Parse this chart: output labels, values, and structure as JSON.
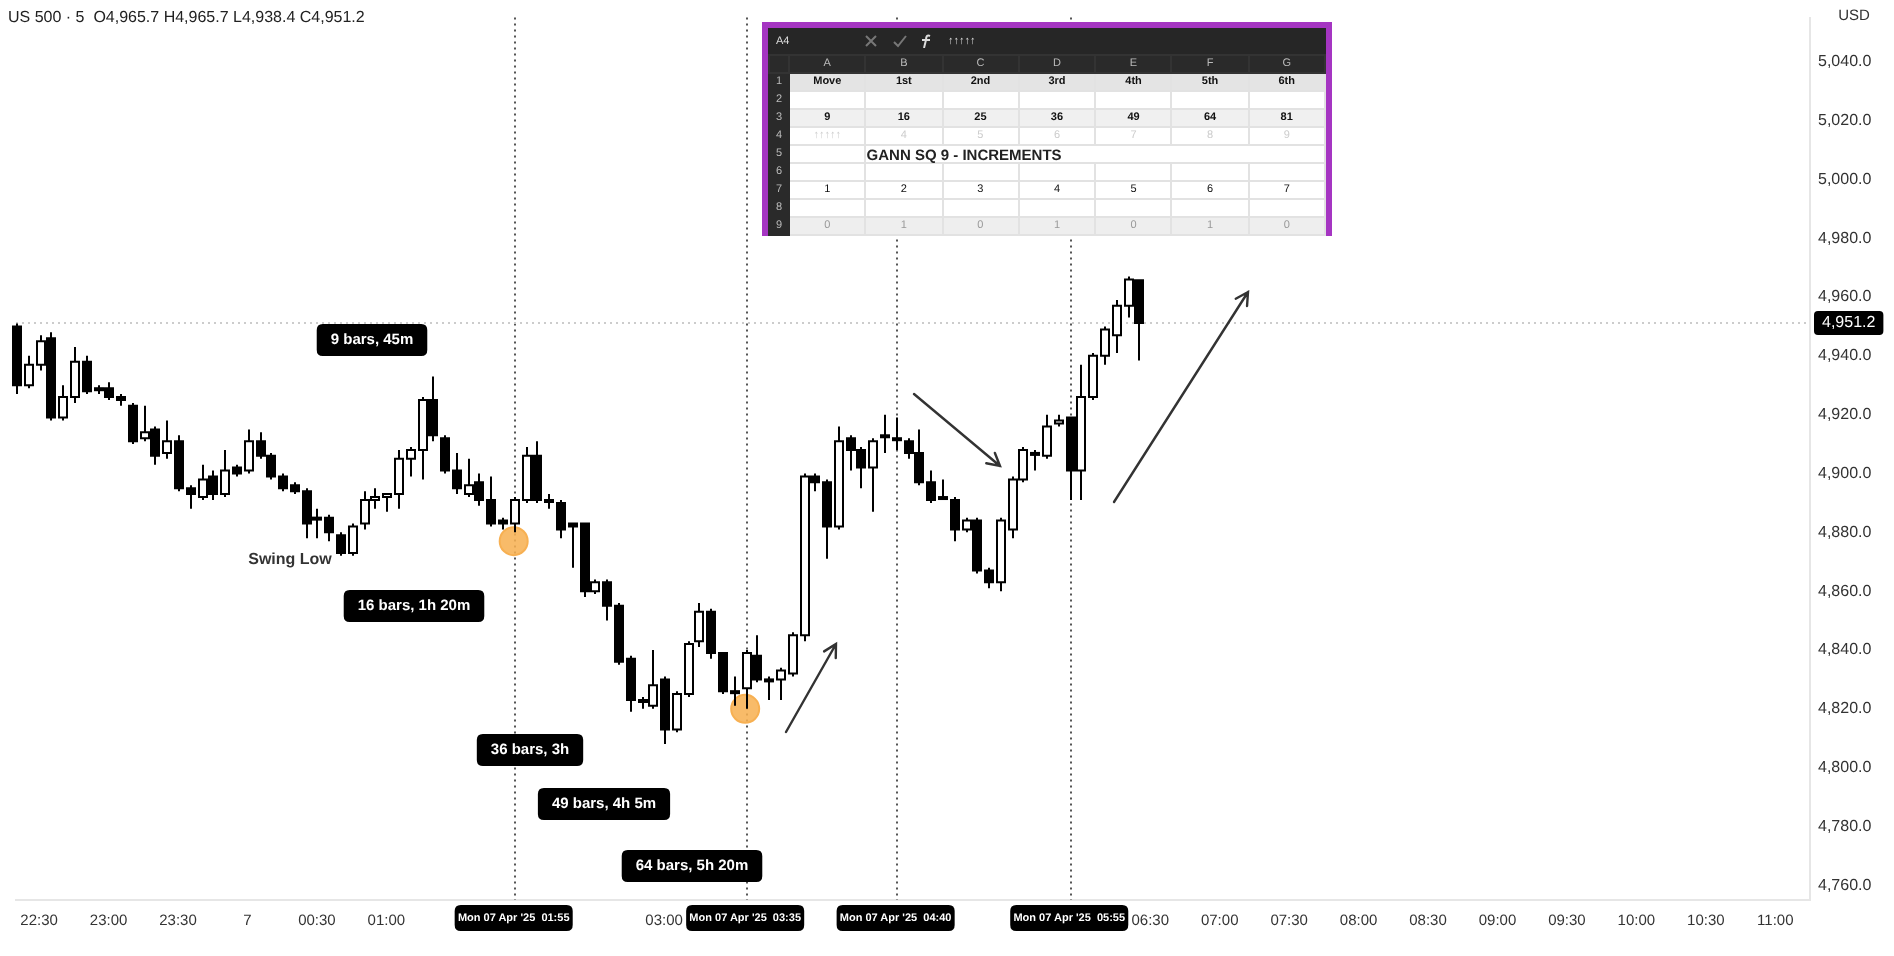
{
  "chart_data": {
    "type": "candlestick",
    "title": "US 500 · 5  O4,965.7 H4,965.7 L4,938.4 C4,951.2",
    "x": [
      "2025-04-06T22:20",
      "2025-04-06T22:25",
      "2025-04-06T22:30",
      "2025-04-06T22:35",
      "2025-04-06T22:40",
      "2025-04-06T22:45",
      "2025-04-06T22:50",
      "2025-04-06T22:55",
      "2025-04-06T23:00",
      "2025-04-06T23:05",
      "2025-04-06T23:10",
      "2025-04-06T23:15",
      "2025-04-06T23:20",
      "2025-04-06T23:25",
      "2025-04-06T23:30",
      "2025-04-06T23:35",
      "2025-04-06T23:40",
      "2025-04-06T23:45",
      "2025-04-06T23:50",
      "2025-04-06T23:55",
      "2025-04-07T00:00",
      "2025-04-07T00:05",
      "2025-04-07T00:10",
      "2025-04-07T00:15",
      "2025-04-07T00:20",
      "2025-04-07T00:25",
      "2025-04-07T00:30",
      "2025-04-07T00:35",
      "2025-04-07T00:40",
      "2025-04-07T00:45",
      "2025-04-07T00:50",
      "2025-04-07T00:55",
      "2025-04-07T01:00",
      "2025-04-07T01:05",
      "2025-04-07T01:10",
      "2025-04-07T01:15",
      "2025-04-07T01:20",
      "2025-04-07T01:25",
      "2025-04-07T01:30",
      "2025-04-07T01:35",
      "2025-04-07T01:40",
      "2025-04-07T01:45",
      "2025-04-07T01:50",
      "2025-04-07T01:55",
      "2025-04-07T02:00",
      "2025-04-07T02:05",
      "2025-04-07T02:10",
      "2025-04-07T02:15",
      "2025-04-07T02:20",
      "2025-04-07T02:25",
      "2025-04-07T02:30",
      "2025-04-07T02:35",
      "2025-04-07T02:40",
      "2025-04-07T02:45",
      "2025-04-07T02:50",
      "2025-04-07T02:55",
      "2025-04-07T03:00",
      "2025-04-07T03:05",
      "2025-04-07T03:10",
      "2025-04-07T03:15",
      "2025-04-07T03:20",
      "2025-04-07T03:25",
      "2025-04-07T03:30",
      "2025-04-07T03:35",
      "2025-04-07T03:40",
      "2025-04-07T03:45",
      "2025-04-07T03:50",
      "2025-04-07T03:55",
      "2025-04-07T04:00",
      "2025-04-07T04:05",
      "2025-04-07T04:10",
      "2025-04-07T04:15",
      "2025-04-07T04:20",
      "2025-04-07T04:25",
      "2025-04-07T04:30",
      "2025-04-07T04:35",
      "2025-04-07T04:40",
      "2025-04-07T04:45",
      "2025-04-07T04:50",
      "2025-04-07T04:55",
      "2025-04-07T05:00",
      "2025-04-07T05:05",
      "2025-04-07T05:10",
      "2025-04-07T05:15",
      "2025-04-07T05:20",
      "2025-04-07T05:25",
      "2025-04-07T05:30",
      "2025-04-07T05:35",
      "2025-04-07T05:40",
      "2025-04-07T05:45",
      "2025-04-07T05:50",
      "2025-04-07T05:55",
      "2025-04-07T06:00",
      "2025-04-07T06:05",
      "2025-04-07T06:10",
      "2025-04-07T06:15",
      "2025-04-07T06:20",
      "2025-04-07T06:25"
    ],
    "ohlc": [
      [
        4950,
        4951,
        4927,
        4930
      ],
      [
        4930,
        4940,
        4929,
        4937
      ],
      [
        4937,
        4947,
        4935,
        4945
      ],
      [
        4946,
        4948,
        4918,
        4919
      ],
      [
        4919,
        4930,
        4918,
        4926
      ],
      [
        4926,
        4943,
        4924,
        4938
      ],
      [
        4938,
        4940,
        4927,
        4928
      ],
      [
        4929,
        4930,
        4927,
        4929
      ],
      [
        4929,
        4931,
        4925,
        4926
      ],
      [
        4926,
        4927,
        4923,
        4925
      ],
      [
        4923,
        4924,
        4910,
        4911
      ],
      [
        4912,
        4923,
        4911,
        4914
      ],
      [
        4915,
        4916,
        4903,
        4906
      ],
      [
        4907,
        4918,
        4905,
        4911
      ],
      [
        4911,
        4913,
        4894,
        4895
      ],
      [
        4895,
        4896,
        4888,
        4893
      ],
      [
        4892,
        4903,
        4891,
        4898
      ],
      [
        4899,
        4901,
        4891,
        4893
      ],
      [
        4893,
        4908,
        4892,
        4901
      ],
      [
        4902,
        4903,
        4899,
        4900
      ],
      [
        4901,
        4915,
        4900,
        4911
      ],
      [
        4911,
        4914,
        4905,
        4906
      ],
      [
        4906,
        4907,
        4898,
        4899
      ],
      [
        4899,
        4900,
        4894,
        4895
      ],
      [
        4896,
        4897,
        4893,
        4894
      ],
      [
        4894,
        4895,
        4878,
        4883
      ],
      [
        4885,
        4888,
        4878,
        4885
      ],
      [
        4885,
        4886,
        4877,
        4880
      ],
      [
        4879,
        4880,
        4872,
        4873
      ],
      [
        4873,
        4883,
        4872,
        4882
      ],
      [
        4883,
        4894,
        4881,
        4891
      ],
      [
        4891,
        4895,
        4888,
        4892
      ],
      [
        4892,
        4893,
        4887,
        4893
      ],
      [
        4893,
        4908,
        4888,
        4905
      ],
      [
        4905,
        4909,
        4899,
        4908
      ],
      [
        4908,
        4926,
        4898,
        4925
      ],
      [
        4925,
        4933,
        4911,
        4913
      ],
      [
        4912,
        4913,
        4900,
        4901
      ],
      [
        4901,
        4907,
        4893,
        4895
      ],
      [
        4893,
        4905,
        4892,
        4896
      ],
      [
        4897,
        4900,
        4889,
        4891
      ],
      [
        4891,
        4899,
        4882,
        4883
      ],
      [
        4884,
        4885,
        4881,
        4883
      ],
      [
        4883,
        4892,
        4880,
        4891
      ],
      [
        4891,
        4909,
        4890,
        4906
      ],
      [
        4906,
        4911,
        4890,
        4891
      ],
      [
        4891,
        4893,
        4888,
        4891
      ],
      [
        4890,
        4891,
        4878,
        4881
      ],
      [
        4883,
        4883,
        4868,
        4882
      ],
      [
        4883,
        4883,
        4858,
        4860
      ],
      [
        4860,
        4864,
        4859,
        4863
      ],
      [
        4863,
        4864,
        4850,
        4855
      ],
      [
        4855,
        4856,
        4835,
        4836
      ],
      [
        4837,
        4838,
        4819,
        4823
      ],
      [
        4823,
        4824,
        4820,
        4823
      ],
      [
        4821,
        4840,
        4820,
        4828
      ],
      [
        4830,
        4831,
        4808,
        4813
      ],
      [
        4813,
        4826,
        4812,
        4825
      ],
      [
        4825,
        4843,
        4824,
        4842
      ],
      [
        4843,
        4856,
        4841,
        4853
      ],
      [
        4853,
        4854,
        4837,
        4839
      ],
      [
        4839,
        4839,
        4825,
        4826
      ],
      [
        4826,
        4831,
        4821,
        4826
      ],
      [
        4827,
        4840,
        4820,
        4839
      ],
      [
        4838,
        4845,
        4829,
        4830
      ],
      [
        4830,
        4831,
        4823,
        4830
      ],
      [
        4830,
        4834,
        4823,
        4833
      ],
      [
        4832,
        4846,
        4831,
        4845
      ],
      [
        4845,
        4900,
        4843,
        4899
      ],
      [
        4899,
        4900,
        4894,
        4897
      ],
      [
        4897,
        4898,
        4871,
        4882
      ],
      [
        4882,
        4916,
        4881,
        4911
      ],
      [
        4912,
        4913,
        4901,
        4908
      ],
      [
        4908,
        4909,
        4895,
        4902
      ],
      [
        4902,
        4912,
        4887,
        4911
      ],
      [
        4913,
        4920,
        4907,
        4913
      ],
      [
        4912,
        4919,
        4908,
        4912
      ],
      [
        4911,
        4912,
        4905,
        4907
      ],
      [
        4907,
        4915,
        4896,
        4897
      ],
      [
        4897,
        4901,
        4890,
        4891
      ],
      [
        4892,
        4898,
        4891,
        4892
      ],
      [
        4891,
        4892,
        4877,
        4881
      ],
      [
        4881,
        4885,
        4880,
        4884
      ],
      [
        4884,
        4885,
        4866,
        4867
      ],
      [
        4867,
        4868,
        4861,
        4863
      ],
      [
        4863,
        4885,
        4860,
        4884
      ],
      [
        4881,
        4899,
        4878,
        4898
      ],
      [
        4898,
        4909,
        4897,
        4908
      ],
      [
        4907,
        4908,
        4901,
        4907
      ],
      [
        4906,
        4920,
        4905,
        4916
      ],
      [
        4917,
        4920,
        4916,
        4918
      ],
      [
        4919,
        4919,
        4891,
        4901
      ],
      [
        4901,
        4937,
        4891,
        4926
      ],
      [
        4926,
        4941,
        4925,
        4940
      ],
      [
        4940,
        4950,
        4937,
        4949
      ],
      [
        4947,
        4959,
        4941,
        4957
      ],
      [
        4957,
        4967,
        4953,
        4966
      ],
      [
        4965.7,
        4965.7,
        4938.4,
        4951.2
      ]
    ],
    "series": [
      {
        "type": "scatter",
        "x": [
          "2025-04-07T01:55",
          "2025-04-07T03:35"
        ],
        "values": [
          4877,
          4820
        ],
        "color": "#f7b052",
        "marker": "circle"
      }
    ],
    "xlim": [
      "2025-04-06T22:20",
      "2025-04-07T11:15"
    ],
    "xticks": [
      {
        "value": "2025-04-06T22:30",
        "label": "22:30"
      },
      {
        "value": "2025-04-06T23:00",
        "label": "23:00"
      },
      {
        "value": "2025-04-06T23:30",
        "label": "23:30"
      },
      {
        "value": "2025-04-07T00:00",
        "label": "7"
      },
      {
        "value": "2025-04-07T00:30",
        "label": "00:30"
      },
      {
        "value": "2025-04-07T01:00",
        "label": "01:00"
      },
      {
        "value": "2025-04-07T03:00",
        "label": "03:00"
      },
      {
        "value": "2025-04-07T06:30",
        "label": "06:30"
      },
      {
        "value": "2025-04-07T07:00",
        "label": "07:00"
      },
      {
        "value": "2025-04-07T07:30",
        "label": "07:30"
      },
      {
        "value": "2025-04-07T08:00",
        "label": "08:00"
      },
      {
        "value": "2025-04-07T08:30",
        "label": "08:30"
      },
      {
        "value": "2025-04-07T09:00",
        "label": "09:00"
      },
      {
        "value": "2025-04-07T09:30",
        "label": "09:30"
      },
      {
        "value": "2025-04-07T10:00",
        "label": "10:00"
      },
      {
        "value": "2025-04-07T10:30",
        "label": "10:30"
      },
      {
        "value": "2025-04-07T11:00",
        "label": "11:00"
      }
    ],
    "ylim": [
      4755,
      5055
    ],
    "yticks": [
      {
        "value": 4760,
        "label": "4,760.0"
      },
      {
        "value": 4780,
        "label": "4,780.0"
      },
      {
        "value": 4800,
        "label": "4,800.0"
      },
      {
        "value": 4820,
        "label": "4,820.0"
      },
      {
        "value": 4840,
        "label": "4,840.0"
      },
      {
        "value": 4860,
        "label": "4,860.0"
      },
      {
        "value": 4880,
        "label": "4,880.0"
      },
      {
        "value": 4900,
        "label": "4,900.0"
      },
      {
        "value": 4920,
        "label": "4,920.0"
      },
      {
        "value": 4940,
        "label": "4,940.0"
      },
      {
        "value": 4960,
        "label": "4,960.0"
      },
      {
        "value": 4980,
        "label": "4,980.0"
      },
      {
        "value": 5000,
        "label": "5,000.0"
      },
      {
        "value": 5020,
        "label": "5,020.0"
      },
      {
        "value": 5040,
        "label": "5,040.0"
      }
    ],
    "ref_lines": [
      {
        "axis": "x",
        "value": "2025-04-07T01:55",
        "label": "Mon 07 Apr '25  01:55",
        "line_style": "dotted",
        "color": "#555555"
      },
      {
        "axis": "x",
        "value": "2025-04-07T03:35",
        "label": "Mon 07 Apr '25  03:35",
        "line_style": "dotted",
        "color": "#555555"
      },
      {
        "axis": "x",
        "value": "2025-04-07T04:40",
        "label": "Mon 07 Apr '25  04:40",
        "line_style": "dotted",
        "color": "#555555"
      },
      {
        "axis": "x",
        "value": "2025-04-07T05:55",
        "label": "Mon 07 Apr '25  05:55",
        "line_style": "dotted",
        "color": "#555555"
      },
      {
        "axis": "y",
        "value": 4951.2,
        "label": "4,951.2",
        "line_style": "dotted",
        "color": "#cccccc"
      }
    ],
    "annotations": [
      "9 bars, 45m",
      "Swing Low",
      "16 bars, 1h 20m",
      "36 bars, 3h",
      "49 bars, 4h 5m",
      "64 bars, 5h 20m",
      "USD",
      "A4",
      "↑↑↑↑↑",
      "A",
      "B",
      "C",
      "D",
      "E",
      "F",
      "G",
      "1",
      "2",
      "3",
      "4",
      "5",
      "6",
      "7",
      "8",
      "9",
      "Move",
      "1st",
      "2nd",
      "3rd",
      "4th",
      "5th",
      "6th",
      "9",
      "16",
      "25",
      "36",
      "49",
      "64",
      "81",
      "↑↑↑↑↑",
      "4",
      "5",
      "6",
      "7",
      "8",
      "9",
      "GANN SQ 9 - INCREMENTS",
      "1",
      "2",
      "3",
      "4",
      "5",
      "6",
      "7",
      "0",
      "1",
      "0",
      "1",
      "0",
      "1",
      "0"
    ]
  }
}
